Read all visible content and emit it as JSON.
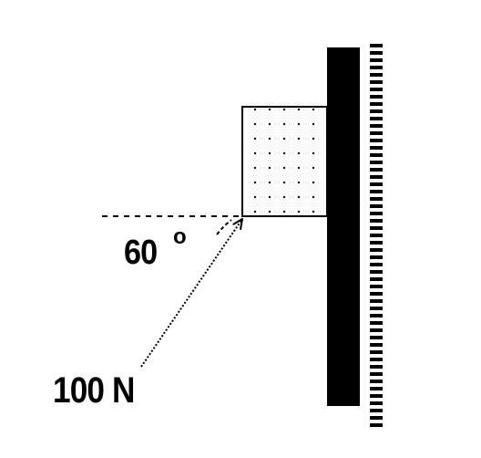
{
  "diagram": {
    "angle": {
      "value": "60",
      "degree_symbol": "o"
    },
    "force": {
      "label": "100 N"
    },
    "colors": {
      "ink": "#000000",
      "background": "#ffffff"
    }
  }
}
